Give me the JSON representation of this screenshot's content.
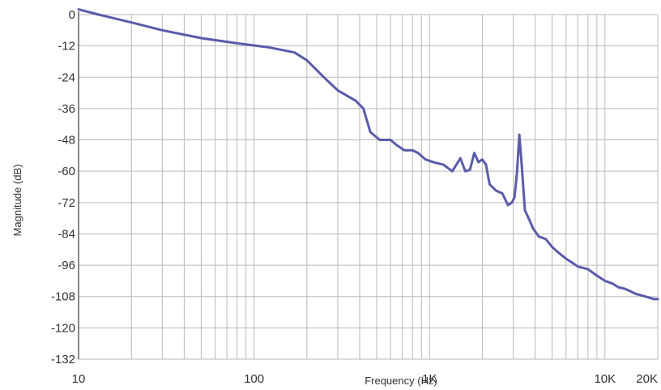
{
  "chart_data": {
    "type": "line",
    "title": "",
    "xlabel": "Frequency (Hz)",
    "ylabel": "Magnitude (dB)",
    "x_scale": "log",
    "xlim": [
      10,
      20000
    ],
    "ylim": [
      -132,
      0
    ],
    "grid": true,
    "x_tick_labels": [
      {
        "value": 10,
        "label": "10"
      },
      {
        "value": 100,
        "label": "100"
      },
      {
        "value": 1000,
        "label": "1K"
      },
      {
        "value": 10000,
        "label": "10K"
      },
      {
        "value": 20000,
        "label": "20K"
      }
    ],
    "y_ticks": [
      0,
      -12,
      -24,
      -36,
      -48,
      -60,
      -72,
      -84,
      -96,
      -108,
      -120,
      -132
    ],
    "y_tick_labels": [
      "0",
      "-12",
      "-24",
      "-36",
      "-48",
      "-60",
      "-72",
      "-84",
      "-96",
      "-108",
      "-120",
      "-132"
    ],
    "series": [
      {
        "color": "#5b5bab",
        "x": [
          10,
          13,
          20,
          30,
          50,
          80,
          120,
          170,
          200,
          250,
          300,
          380,
          420,
          460,
          520,
          600,
          650,
          720,
          800,
          860,
          950,
          1050,
          1200,
          1350,
          1500,
          1600,
          1700,
          1800,
          1900,
          2000,
          2100,
          2200,
          2400,
          2600,
          2800,
          2950,
          3050,
          3150,
          3250,
          3350,
          3500,
          3700,
          3900,
          4200,
          4600,
          5000,
          5500,
          6000,
          6500,
          7000,
          8000,
          9000,
          10000,
          11000,
          12000,
          13000,
          14000,
          15000,
          16000,
          17000,
          18000,
          19000,
          20000
        ],
        "y": [
          2,
          0,
          -3,
          -6,
          -9,
          -11,
          -12.5,
          -14.5,
          -17.5,
          -24,
          -29,
          -33,
          -36,
          -45,
          -48,
          -48,
          -50,
          -52,
          -52,
          -53,
          -55.5,
          -56.5,
          -57.5,
          -60,
          -55,
          -60,
          -59.5,
          -53,
          -56.5,
          -55.5,
          -57.5,
          -65,
          -67.5,
          -68.5,
          -73,
          -72,
          -70,
          -61,
          -46,
          -57,
          -75,
          -78.5,
          -82,
          -85,
          -86,
          -89,
          -91.5,
          -93.5,
          -95,
          -96.5,
          -97.5,
          -100,
          -102,
          -103,
          -104.5,
          -105,
          -106,
          -107,
          -107.5,
          -108,
          -108.5,
          -109,
          -109
        ]
      }
    ]
  }
}
